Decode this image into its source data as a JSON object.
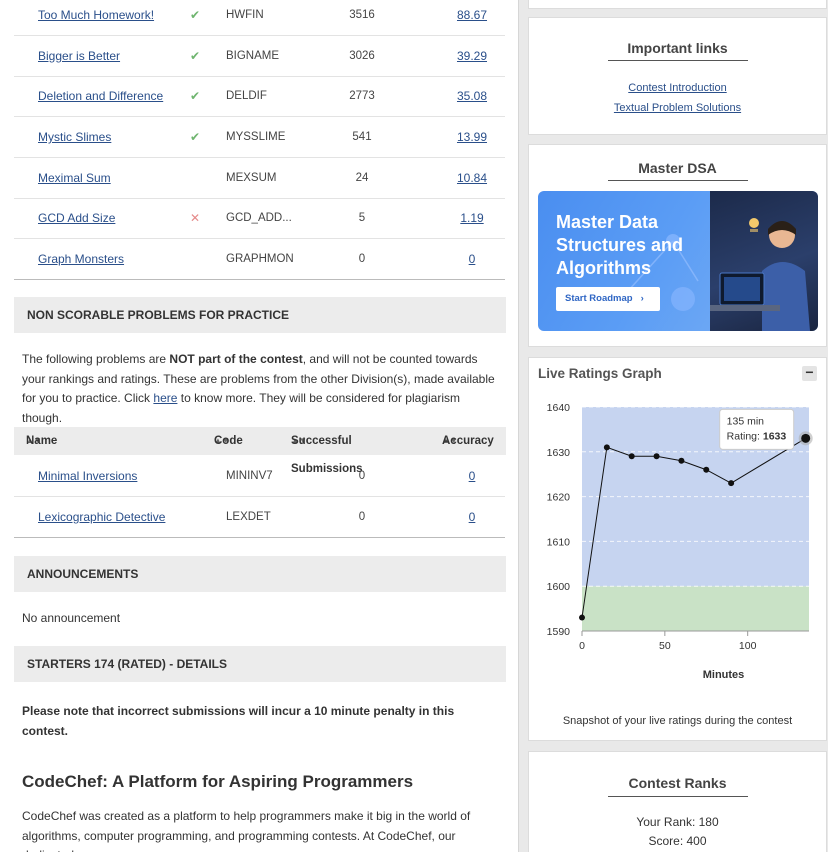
{
  "problems": [
    {
      "name": "Too Much Homework!",
      "status": "ok",
      "code": "HWFIN",
      "submissions": "3516",
      "accuracy": "88.67"
    },
    {
      "name": "Bigger is Better",
      "status": "ok",
      "code": "BIGNAME",
      "submissions": "3026",
      "accuracy": "39.29"
    },
    {
      "name": "Deletion and Difference",
      "status": "ok",
      "code": "DELDIF",
      "submissions": "2773",
      "accuracy": "35.08"
    },
    {
      "name": "Mystic Slimes",
      "status": "ok",
      "code": "MYSSLIME",
      "submissions": "541",
      "accuracy": "13.99"
    },
    {
      "name": "Meximal Sum",
      "status": "",
      "code": "MEXSUM",
      "submissions": "24",
      "accuracy": "10.84"
    },
    {
      "name": "GCD Add Size",
      "status": "bad",
      "code": "GCD_ADD...",
      "submissions": "5",
      "accuracy": "1.19"
    },
    {
      "name": "Graph Monsters",
      "status": "",
      "code": "GRAPHMON",
      "submissions": "0",
      "accuracy": "0"
    }
  ],
  "icons": {
    "ok": "check-icon",
    "bad": "cross-icon",
    "sort": "sort-icon"
  },
  "colors": {
    "ok": "#6fb56f",
    "bad": "#e58a8a",
    "link": "#2a4f8a"
  },
  "practice": {
    "heading": "NON SCORABLE PROBLEMS FOR PRACTICE",
    "text_1": "The following problems are ",
    "text_bold": "NOT part of the contest",
    "text_2": ", and will not be counted towards your rankings and ratings. These are problems from the other Division(s), made available for you to practice. Click ",
    "link": "here",
    "text_3": " to know more. They will be considered for plagiarism though.",
    "columns": [
      "Name",
      "Code",
      "Successful Submissions",
      "Accuracy"
    ],
    "rows": [
      {
        "name": "Minimal Inversions",
        "code": "MININV7",
        "submissions": "0",
        "accuracy": "0"
      },
      {
        "name": "Lexicographic Detective",
        "code": "LEXDET",
        "submissions": "0",
        "accuracy": "0"
      }
    ]
  },
  "announcements": {
    "heading": "ANNOUNCEMENTS",
    "text": "No announcement"
  },
  "details": {
    "heading": "STARTERS 174 (RATED) - DETAILS",
    "note": "Please note that incorrect submissions will incur a 10 minute penalty in this contest."
  },
  "about": {
    "title": "CodeChef: A Platform for Aspiring Programmers",
    "text": "CodeChef was created as a platform to help programmers make it big in the world of algorithms, computer programming, and programming contests. At CodeChef, our dedicated"
  },
  "links_card": {
    "title": "Important links",
    "links": [
      "Contest Introduction",
      "Textual Problem Solutions"
    ]
  },
  "dsa_card": {
    "title": "Master DSA",
    "banner_heading": "Master Data Structures and Algorithms",
    "banner_button": "Start Roadmap",
    "banner_button_icon": "chevron-right-icon"
  },
  "graph_card": {
    "title": "Live Ratings Graph",
    "collapse_label": "−",
    "caption": "Snapshot of your live ratings during the contest",
    "tooltip_line1": "135 min",
    "tooltip_label": "Rating: ",
    "tooltip_value": "1633"
  },
  "chart_data": {
    "type": "line",
    "x": [
      0,
      15,
      30,
      45,
      60,
      75,
      90,
      135
    ],
    "y": [
      1593,
      1631,
      1629,
      1629,
      1628,
      1626,
      1623,
      1633
    ],
    "xlabel": "Minutes",
    "ylabel": "",
    "xticks": [
      0,
      50,
      100
    ],
    "yticks": [
      1590,
      1600,
      1610,
      1620,
      1630,
      1640
    ],
    "xlim": [
      0,
      137
    ],
    "ylim": [
      1590,
      1640
    ],
    "bands": [
      {
        "from": 1590,
        "to": 1600,
        "color": "#c9e2c6"
      },
      {
        "from": 1600,
        "to": 1640,
        "color": "#c6d4f0"
      }
    ],
    "grid": true,
    "highlighted_point_index": 7
  },
  "ranks_card": {
    "title": "Contest Ranks",
    "rank_label": "Your Rank: ",
    "rank_value": "180",
    "score_label": "Score: ",
    "score_value": "400"
  }
}
